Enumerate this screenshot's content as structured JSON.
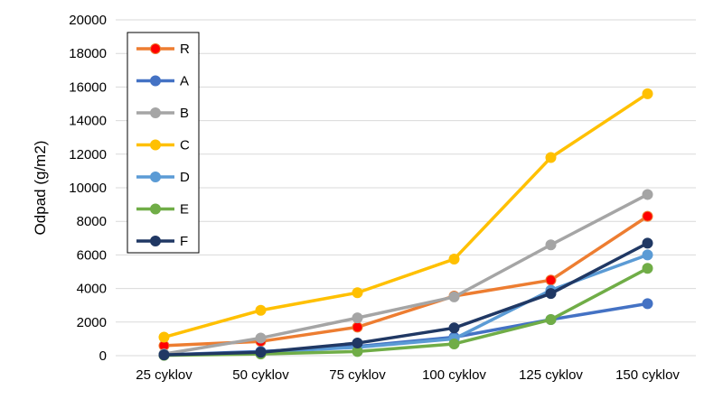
{
  "chart_data": {
    "type": "line",
    "title": "",
    "xlabel": "",
    "ylabel": "Odpad (g/m2)",
    "ylim": [
      0,
      20000
    ],
    "yticks": [
      0,
      2000,
      4000,
      6000,
      8000,
      10000,
      12000,
      14000,
      16000,
      18000,
      20000
    ],
    "categories": [
      "25 cyklov",
      "50 cyklov",
      "75 cyklov",
      "100 cyklov",
      "125 cyklov",
      "150 cyklov"
    ],
    "grid": "horizontal",
    "legend_position": "top-left",
    "series": [
      {
        "name": "R",
        "color": "#ED7D31",
        "marker_color": "#FF0000",
        "values": [
          600,
          850,
          1700,
          3550,
          4500,
          8300
        ]
      },
      {
        "name": "A",
        "color": "#4472C4",
        "marker_color": "#4472C4",
        "values": [
          50,
          250,
          550,
          1100,
          2150,
          3100
        ]
      },
      {
        "name": "B",
        "color": "#A5A5A5",
        "marker_color": "#A5A5A5",
        "values": [
          100,
          1050,
          2250,
          3500,
          6600,
          9600
        ]
      },
      {
        "name": "C",
        "color": "#FFC000",
        "marker_color": "#FFC000",
        "values": [
          1100,
          2700,
          3750,
          5750,
          11800,
          15600
        ]
      },
      {
        "name": "D",
        "color": "#5B9BD5",
        "marker_color": "#5B9BD5",
        "values": [
          50,
          200,
          500,
          1000,
          3900,
          6000
        ]
      },
      {
        "name": "E",
        "color": "#70AD47",
        "marker_color": "#70AD47",
        "values": [
          20,
          100,
          250,
          700,
          2150,
          5200
        ]
      },
      {
        "name": "F",
        "color": "#203864",
        "marker_color": "#203864",
        "values": [
          50,
          200,
          750,
          1650,
          3700,
          6700
        ]
      }
    ]
  }
}
